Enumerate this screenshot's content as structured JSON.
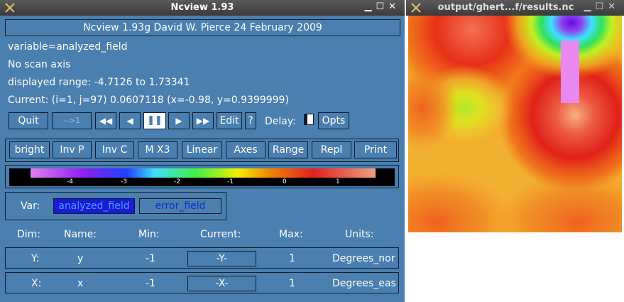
{
  "main_window": {
    "title": "Ncview 1.93",
    "version_line": "Ncview 1.93g David W. Pierce  24 February 2009",
    "info": {
      "variable": "variable=analyzed_field",
      "scan": "No scan axis",
      "range": "displayed range: -4.7126 to 1.73341",
      "current": "Current: (i=1, j=97) 0.0607118 (x=-0.98, y=0.9399999)"
    },
    "toolbar": {
      "quit": "Quit",
      "arrow": "-->1",
      "rewind": "◀◀",
      "back": "◀",
      "pause": "❚❚",
      "forward": "▶",
      "fast_forward": "▶▶",
      "edit": "Edit",
      "help": "?",
      "delay_label": "Delay:",
      "opts": "Opts"
    },
    "options_row": [
      "bright",
      "Inv P",
      "Inv C",
      "M X3",
      "Linear",
      "Axes",
      "Range",
      "Repl",
      "Print"
    ],
    "colorbar": {
      "ticks": [
        "-4",
        "-3",
        "-2",
        "-1",
        "0",
        "1"
      ]
    },
    "var_panel": {
      "label": "Var:",
      "options": [
        "analyzed_field",
        "error_field"
      ],
      "selected": "analyzed_field"
    },
    "dim_table": {
      "headers": [
        "Dim:",
        "Name:",
        "Min:",
        "Current:",
        "Max:",
        "Units:"
      ],
      "rows": [
        {
          "dim": "Y:",
          "name": "y",
          "min": "-1",
          "current": "-Y-",
          "max": "1",
          "units": "Degrees_nor"
        },
        {
          "dim": "X:",
          "name": "x",
          "min": "-1",
          "current": "-X-",
          "max": "1",
          "units": "Degrees_eas"
        }
      ]
    }
  },
  "plot_window": {
    "title": "output/ghert...f/results.nc"
  },
  "colors": {
    "panel_bg": "#4a7fb0",
    "selected_var_bg": "#1a1ad8",
    "selected_var_text": "#40a0ff"
  }
}
